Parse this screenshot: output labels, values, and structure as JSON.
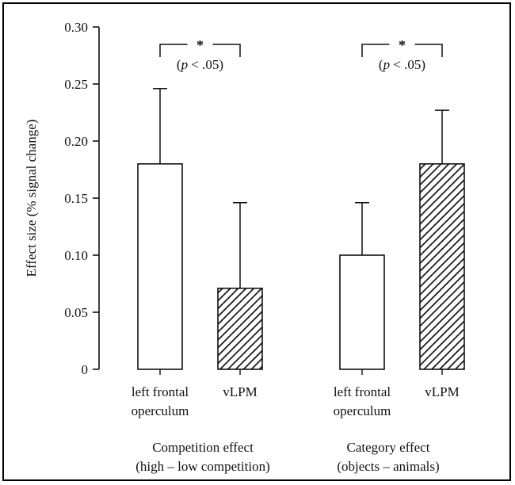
{
  "chart_data": {
    "type": "bar",
    "ylabel": "Effect size (% signal change)",
    "ylim": [
      0,
      0.3
    ],
    "yticks": [
      "0",
      "0.05",
      "0.10",
      "0.15",
      "0.20",
      "0.25",
      "0.30"
    ],
    "groups": [
      {
        "label_line1": "Competition effect",
        "label_line2": "(high – low competition)",
        "bars": [
          {
            "label_line1": "left frontal",
            "label_line2": "operculum",
            "value": 0.18,
            "error": 0.066,
            "pattern": "open"
          },
          {
            "label_line1": "vLPM",
            "label_line2": "",
            "value": 0.071,
            "error": 0.075,
            "pattern": "hatched"
          }
        ],
        "significance": {
          "star": "*",
          "p_prefix": "(",
          "p_italic": "p",
          "p_suffix": " < .05)"
        }
      },
      {
        "label_line1": "Category effect",
        "label_line2": "(objects – animals)",
        "bars": [
          {
            "label_line1": "left frontal",
            "label_line2": "operculum",
            "value": 0.1,
            "error": 0.046,
            "pattern": "open"
          },
          {
            "label_line1": "vLPM",
            "label_line2": "",
            "value": 0.18,
            "error": 0.047,
            "pattern": "hatched"
          }
        ],
        "significance": {
          "star": "*",
          "p_prefix": "(",
          "p_italic": "p",
          "p_suffix": " < .05)"
        }
      }
    ]
  }
}
